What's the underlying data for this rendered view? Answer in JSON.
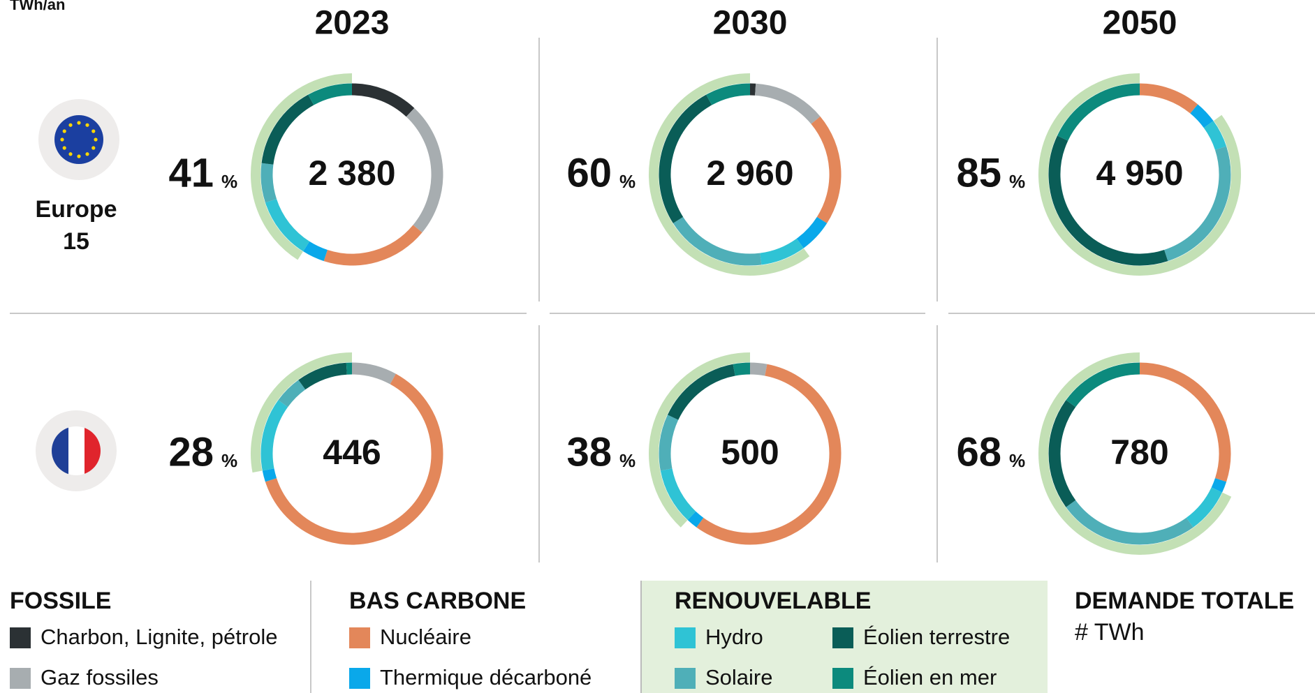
{
  "chart_data": {
    "type": "donut",
    "unit": "TWh/an",
    "columns": [
      "2023",
      "2030",
      "2050"
    ],
    "rows": [
      "Europe\n15",
      null
    ],
    "groups": [
      "FOSSILE",
      "BAS CARBONE",
      "RENOUVELABLE"
    ],
    "series": [
      {
        "name": "Charbon, Lignite, pétrole",
        "color": "#2b3134",
        "group": 0
      },
      {
        "name": "Gaz fossiles",
        "color": "#a7adb0",
        "group": 0
      },
      {
        "name": "Nucléaire",
        "color": "#e3875a",
        "group": 1
      },
      {
        "name": "Thermique décarboné",
        "color": "#0aa8ea",
        "group": 1
      },
      {
        "name": "Hydro",
        "color": "#2fc3d5",
        "group": 2
      },
      {
        "name": "Solaire",
        "color": "#4fafb8",
        "group": 2
      },
      {
        "name": "Éolien terrestre",
        "color": "#0a5d57",
        "group": 2
      },
      {
        "name": "Éolien en mer",
        "color": "#0c8a7d",
        "group": 2
      }
    ],
    "renewable_color": "#c3e0b5",
    "share_color": "#8fbc7f",
    "percent_sign": "%",
    "total_title": "DEMANDE TOTALE",
    "total_unit": "# TWh",
    "panels": [
      {
        "total": 2380,
        "total_label": "2 380",
        "renewable_share": 41,
        "values": [
          12,
          24,
          19,
          4,
          11,
          7,
          15,
          8
        ]
      },
      {
        "total": 2960,
        "total_label": "2 960",
        "renewable_share": 60,
        "values": [
          1,
          13,
          20,
          6,
          8,
          18,
          26,
          8
        ]
      },
      {
        "total": 4950,
        "total_label": "4 950",
        "renewable_share": 85,
        "values": [
          0,
          0,
          11,
          4,
          5,
          25,
          37,
          18
        ]
      },
      {
        "total": 446,
        "renewable_share": 28,
        "values": [
          0,
          8,
          62,
          2,
          13,
          5,
          9,
          1
        ]
      },
      {
        "total": 500,
        "renewable_share": 38,
        "values": [
          0,
          3,
          57,
          2,
          10,
          10,
          15,
          3
        ]
      },
      {
        "total": 780,
        "renewable_share": 68,
        "values": [
          0,
          0,
          30,
          2,
          8,
          25,
          20,
          15
        ]
      }
    ]
  }
}
